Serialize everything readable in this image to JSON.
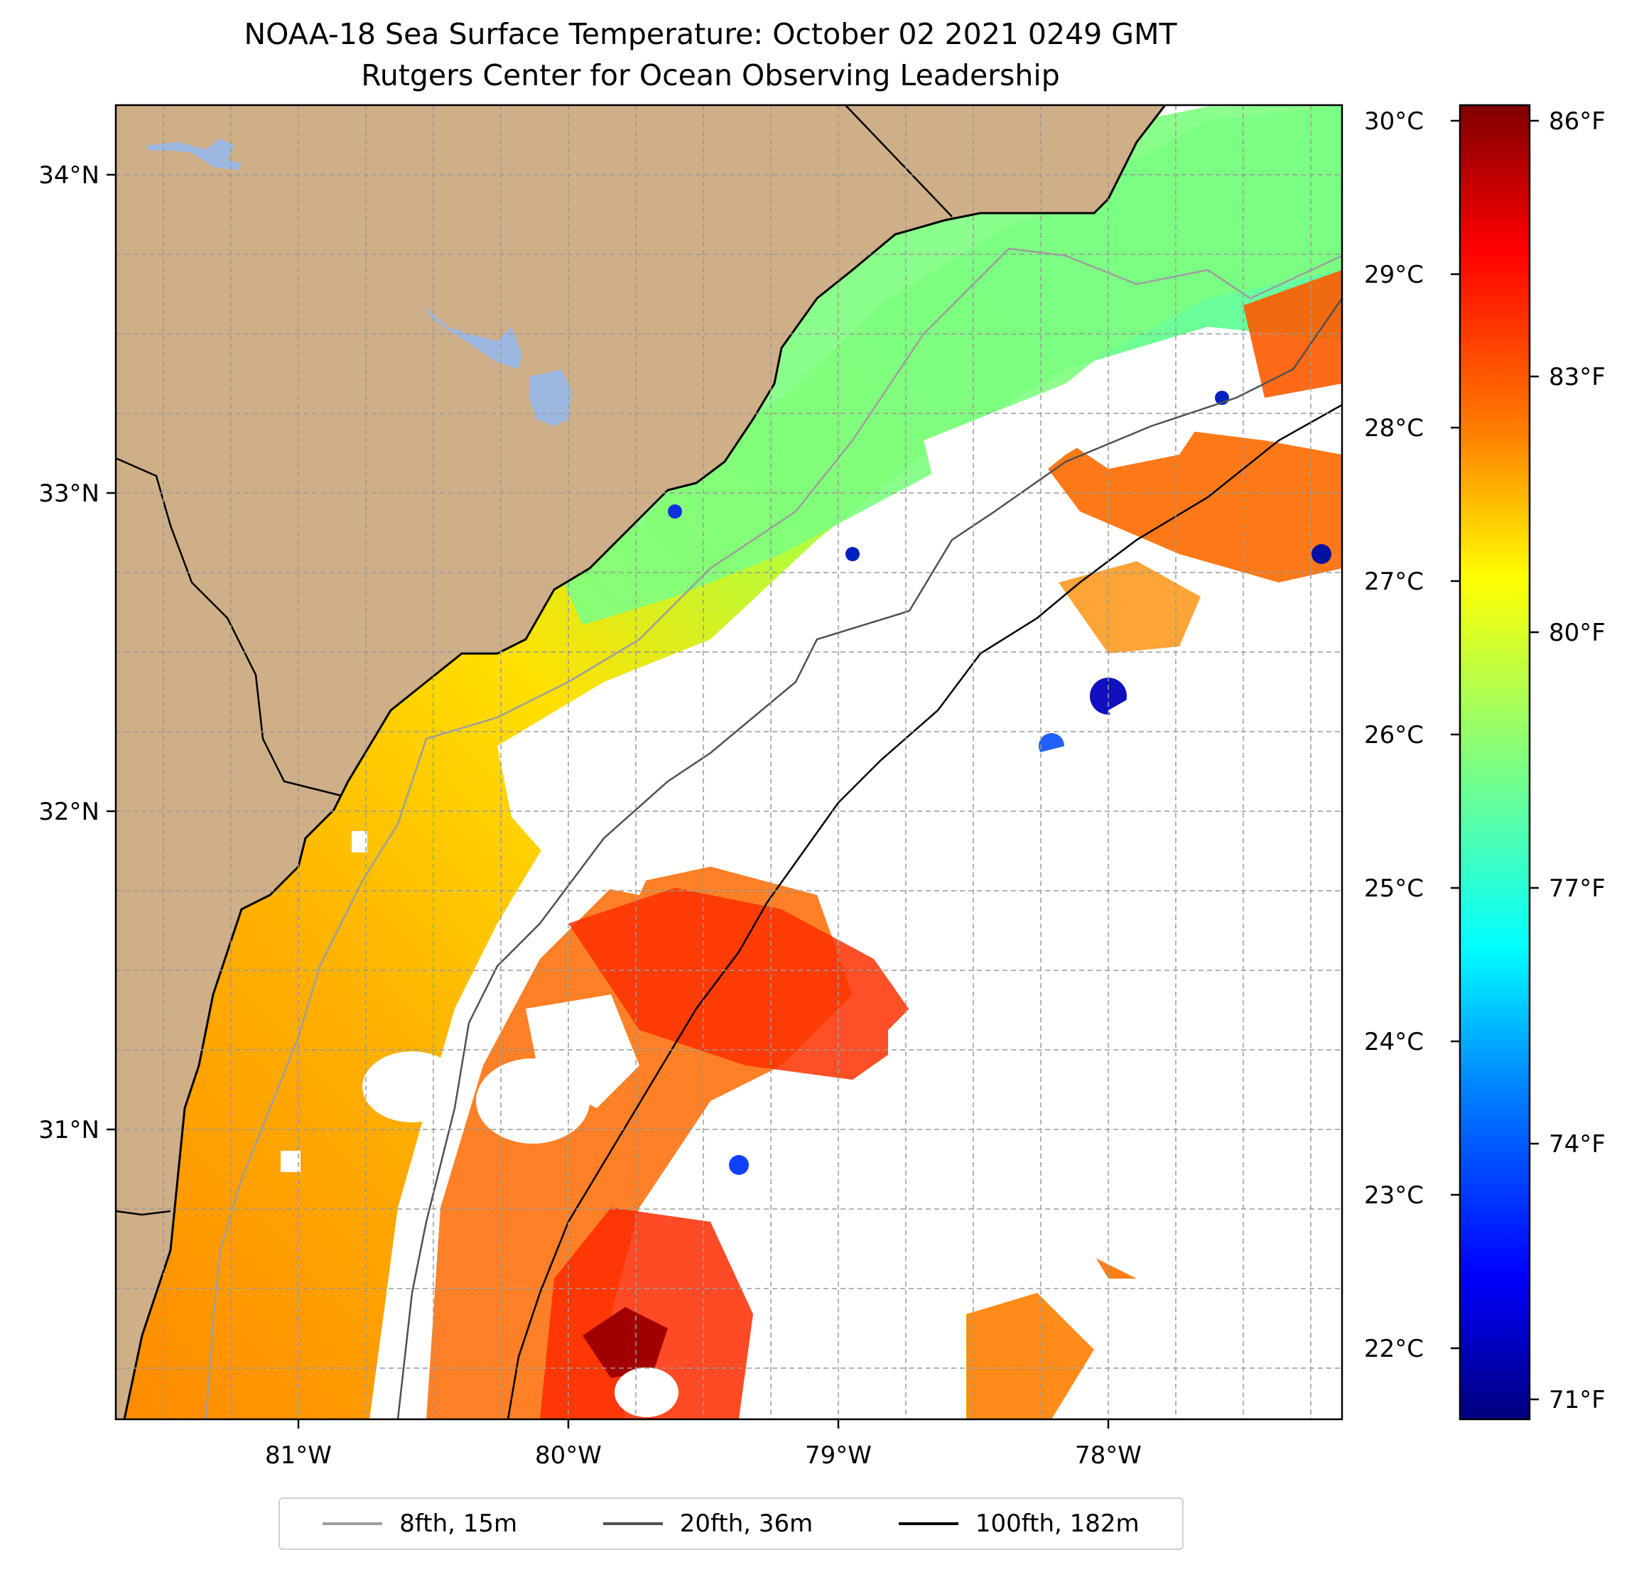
{
  "title": "NOAA-18 Sea Surface Temperature: October 02 2021 0249 GMT",
  "subtitle": "Rutgers Center for Ocean Observing Leadership",
  "map": {
    "lat_ticks": [
      "34°N",
      "33°N",
      "32°N",
      "31°N"
    ],
    "lon_ticks": [
      "81°W",
      "80°W",
      "79°W",
      "78°W"
    ],
    "land_color": "#cfaf88",
    "lake_color": "#9db8e0",
    "cloud_color": "#ffffff",
    "gridlines": true
  },
  "colorbar": {
    "celsius_ticks": [
      "30°C",
      "29°C",
      "28°C",
      "27°C",
      "26°C",
      "25°C",
      "24°C",
      "23°C",
      "22°C"
    ],
    "fahrenheit_ticks": [
      "86°F",
      "83°F",
      "80°F",
      "77°F",
      "74°F",
      "71°F"
    ],
    "colormap": "jet",
    "colors": [
      "#00007f",
      "#0000ff",
      "#0080ff",
      "#00ffff",
      "#80ff80",
      "#ffff00",
      "#ff8000",
      "#ff0000",
      "#7f0000"
    ]
  },
  "legend": {
    "items": [
      {
        "label": "8fth, 15m",
        "color": "#9e9e9e"
      },
      {
        "label": "20fth, 36m",
        "color": "#505050"
      },
      {
        "label": "100fth, 182m",
        "color": "#000000"
      }
    ]
  }
}
